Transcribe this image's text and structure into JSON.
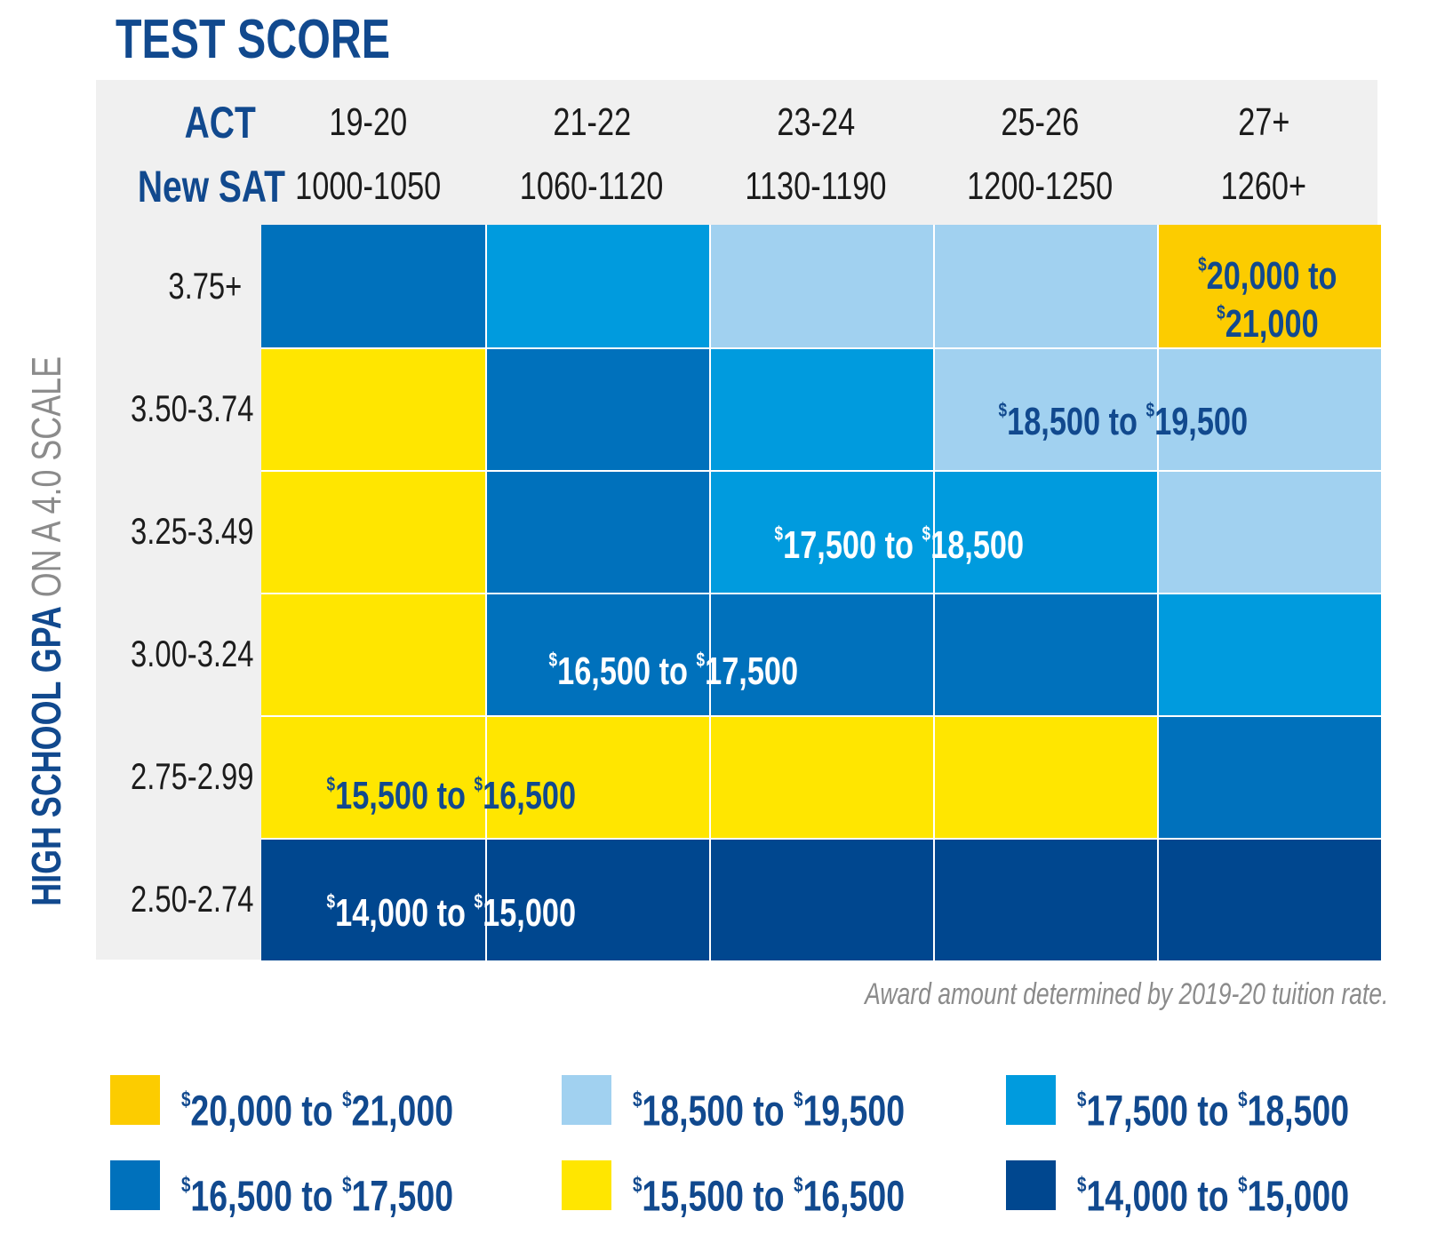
{
  "colors": {
    "gold": "#fccc00",
    "light_blue": "#a1d1f0",
    "sky_blue": "#009bde",
    "mid_blue": "#0071bc",
    "yellow": "#ffe600",
    "navy": "#00478f",
    "title_blue": "#11498e",
    "gray_text": "#8b8b8b",
    "panel": "#f0f0f0"
  },
  "title": "TEST SCORE",
  "y_axis": {
    "bold": "HIGH SCHOOL GPA",
    "light": "ON A 4.0 SCALE"
  },
  "note": "Award amount determined by 2019-20 tuition rate.",
  "chart_data": {
    "type": "heatmap",
    "title": "TEST SCORE",
    "ylabel": "HIGH SCHOOL GPA ON A 4.0 SCALE",
    "header_rows": [
      {
        "label": "ACT",
        "values": [
          "19-20",
          "21-22",
          "23-24",
          "25-26",
          "27+"
        ]
      },
      {
        "label": "New SAT",
        "values": [
          "1000-1050",
          "1060-1120",
          "1130-1190",
          "1200-1250",
          "1260+"
        ]
      }
    ],
    "rows": [
      "3.75+",
      "3.50-3.74",
      "3.25-3.49",
      "3.00-3.24",
      "2.75-2.99",
      "2.50-2.74"
    ],
    "tiers": [
      {
        "id": "t20",
        "range": "$20,000 to $21,000",
        "amount": "20,000",
        "to_amount": "21,000",
        "color": "#fccc00",
        "text_color": "#11498e"
      },
      {
        "id": "t18",
        "range": "$18,500 to $19,500",
        "amount": "18,500",
        "to_amount": "19,500",
        "color": "#a1d1f0",
        "text_color": "#11498e"
      },
      {
        "id": "t17",
        "range": "$17,500 to $18,500",
        "amount": "17,500",
        "to_amount": "18,500",
        "color": "#009bde",
        "text_color": "#ffffff"
      },
      {
        "id": "t16",
        "range": "$16,500 to $17,500",
        "amount": "16,500",
        "to_amount": "17,500",
        "color": "#0071bc",
        "text_color": "#ffffff"
      },
      {
        "id": "t15",
        "range": "$15,500 to $16,500",
        "amount": "15,500",
        "to_amount": "16,500",
        "color": "#ffe600",
        "text_color": "#11498e"
      },
      {
        "id": "t14",
        "range": "$14,000 to $15,000",
        "amount": "14,000",
        "to_amount": "15,000",
        "color": "#00478f",
        "text_color": "#ffffff"
      }
    ],
    "matrix": [
      [
        "t16",
        "t17",
        "t18",
        "t18",
        "t20"
      ],
      [
        "t15",
        "t16",
        "t17",
        "t18",
        "t18"
      ],
      [
        "t15",
        "t16",
        "t17",
        "t17",
        "t18"
      ],
      [
        "t15",
        "t16",
        "t16",
        "t16",
        "t17"
      ],
      [
        "t15",
        "t15",
        "t15",
        "t15",
        "t16"
      ],
      [
        "t14",
        "t14",
        "t14",
        "t14",
        "t14"
      ]
    ],
    "in_chart_labels": [
      {
        "tier": "t20",
        "line1": "20,000 to",
        "line2": "21,000"
      },
      {
        "tier": "t18",
        "from": "18,500",
        "joiner": "to",
        "to": "19,500"
      },
      {
        "tier": "t17",
        "from": "17,500",
        "joiner": "to",
        "to": "18,500"
      },
      {
        "tier": "t16",
        "from": "16,500",
        "joiner": "to",
        "to": "17,500"
      },
      {
        "tier": "t15",
        "from": "15,500",
        "joiner": "to",
        "to": "16,500"
      },
      {
        "tier": "t14",
        "from": "14,000",
        "joiner": "to",
        "to": "15,000"
      }
    ],
    "currency_symbol": "$"
  }
}
